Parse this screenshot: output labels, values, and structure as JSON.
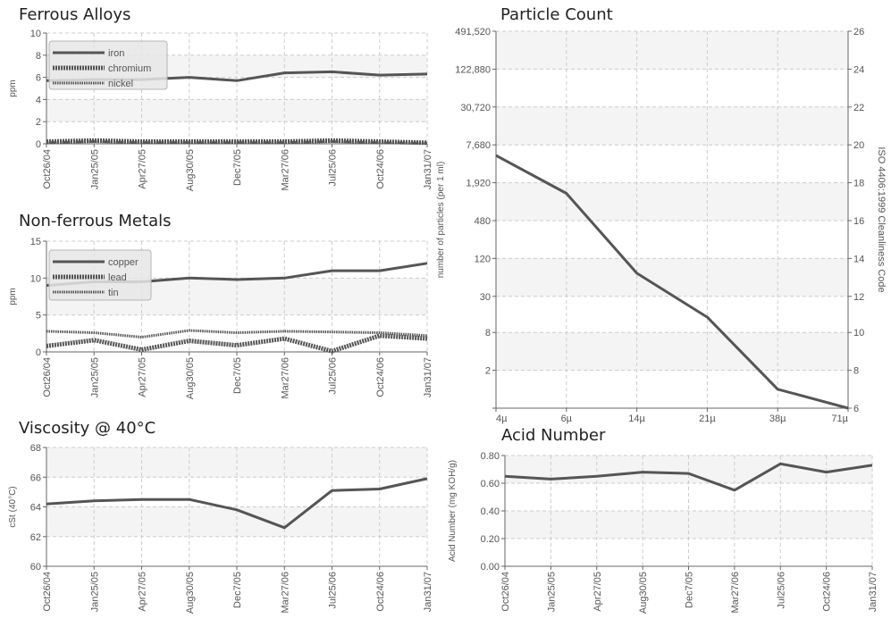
{
  "colors": {
    "line": "#555555",
    "grid": "#cccccc",
    "band": "#f4f4f4",
    "legend_bg": "#e6e6e6",
    "legend_border": "#b5b5b5"
  },
  "dates": [
    "Oct26/04",
    "Jan25/05",
    "Apr27/05",
    "Aug30/05",
    "Dec7/05",
    "Mar27/06",
    "Jul25/06",
    "Oct24/06",
    "Jan31/07"
  ],
  "chart_data": [
    {
      "id": "ferrous",
      "type": "line",
      "title": "Ferrous Alloys",
      "ylabel": "ppm",
      "ylim": [
        0,
        10
      ],
      "yticks": [
        "0",
        "2",
        "4",
        "6",
        "8",
        "10"
      ],
      "legend": "top-left",
      "grid": true,
      "series": [
        {
          "name": "iron",
          "style": "solid",
          "values": [
            5.7,
            5.8,
            5.8,
            6.0,
            5.7,
            6.4,
            6.5,
            6.2,
            6.3
          ]
        },
        {
          "name": "chromium",
          "style": "dotted-thick",
          "values": [
            0.2,
            0.3,
            0.2,
            0.2,
            0.2,
            0.2,
            0.3,
            0.2,
            0.1
          ]
        },
        {
          "name": "nickel",
          "style": "dotted-thin",
          "values": [
            0.1,
            0.2,
            0.1,
            0.1,
            0.1,
            0.1,
            0.2,
            0.1,
            0.05
          ]
        }
      ]
    },
    {
      "id": "nonferrous",
      "type": "line",
      "title": "Non-ferrous Metals",
      "ylabel": "ppm",
      "ylim": [
        0,
        15
      ],
      "yticks": [
        "0",
        "5",
        "10",
        "15"
      ],
      "legend": "top-left",
      "grid": true,
      "series": [
        {
          "name": "copper",
          "style": "solid",
          "values": [
            9.0,
            9.5,
            9.5,
            10.0,
            9.8,
            10.0,
            11.0,
            11.0,
            12.0
          ]
        },
        {
          "name": "lead",
          "style": "dotted-thick",
          "values": [
            0.8,
            1.6,
            0.3,
            1.5,
            0.9,
            1.8,
            0.1,
            2.2,
            1.8
          ]
        },
        {
          "name": "tin",
          "style": "dotted-thin",
          "values": [
            2.8,
            2.6,
            2.0,
            2.9,
            2.6,
            2.8,
            2.7,
            2.6,
            2.2
          ]
        }
      ]
    },
    {
      "id": "viscosity",
      "type": "line",
      "title": "Viscosity @ 40°C",
      "ylabel": "cSt (40°C)",
      "ylim": [
        60,
        68
      ],
      "yticks": [
        "60",
        "62",
        "64",
        "66",
        "68"
      ],
      "grid": true,
      "series": [
        {
          "style": "solid",
          "values": [
            64.2,
            64.4,
            64.5,
            64.5,
            63.8,
            62.6,
            65.1,
            65.2,
            65.9
          ]
        }
      ]
    },
    {
      "id": "particle",
      "type": "line",
      "title": "Particle Count",
      "ylabel": "number of particles (per 1 ml)",
      "y2label": "ISO 4406:1999 Cleanliness Code",
      "yscale": "log",
      "ytick_values": [
        0.5,
        2,
        8,
        30,
        120,
        480,
        1920,
        7680,
        30720,
        122880,
        491520
      ],
      "yticks": [
        "",
        "2",
        "8",
        "30",
        "120",
        "480",
        "1,920",
        "7,680",
        "30,720",
        "122,880",
        "491,520"
      ],
      "y2ticks": [
        "6",
        "8",
        "10",
        "12",
        "14",
        "16",
        "18",
        "20",
        "22",
        "24",
        "26"
      ],
      "categories": [
        "4µ",
        "6µ",
        "14µ",
        "21µ",
        "38µ",
        "71µ"
      ],
      "grid": true,
      "series": [
        {
          "style": "solid",
          "values": [
            5200,
            1300,
            70,
            14,
            1.0,
            0.5
          ]
        }
      ]
    },
    {
      "id": "acid",
      "type": "line",
      "title": "Acid Number",
      "ylabel": "Acid Number (mg KOH/g)",
      "ylim": [
        0,
        0.8
      ],
      "yticks": [
        "0.00",
        "0.20",
        "0.40",
        "0.60",
        "0.80"
      ],
      "grid": true,
      "series": [
        {
          "style": "solid",
          "values": [
            0.65,
            0.63,
            0.65,
            0.68,
            0.67,
            0.55,
            0.74,
            0.68,
            0.73
          ]
        }
      ]
    }
  ]
}
